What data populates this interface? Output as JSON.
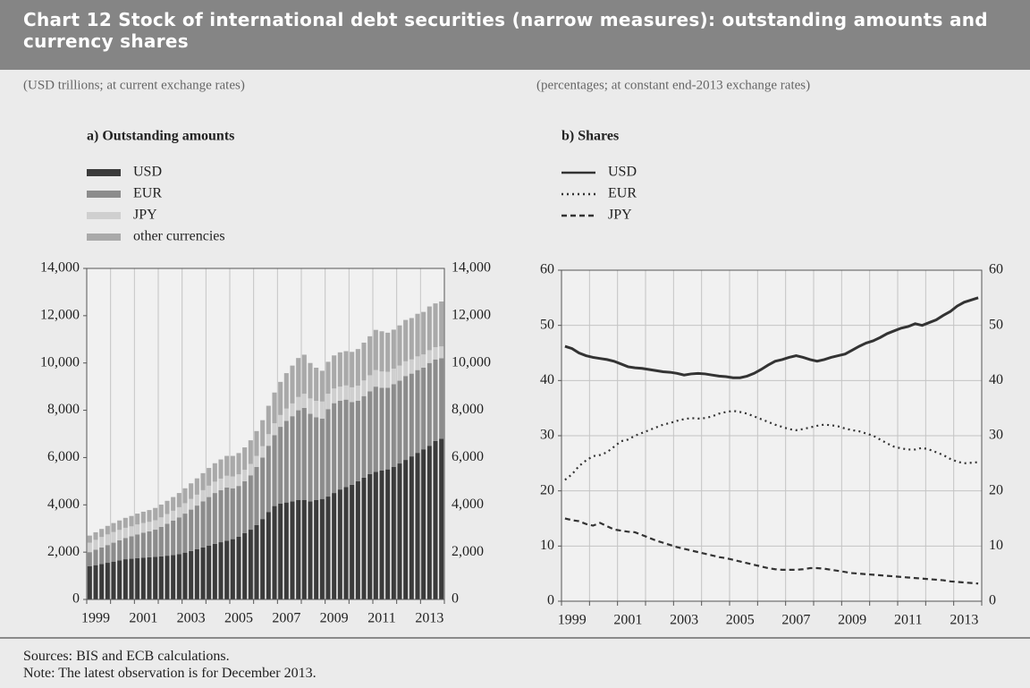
{
  "title": "Chart 12 Stock of international debt securities (narrow measures): outstanding amounts and currency shares",
  "sources": "Sources: BIS and ECB calculations.",
  "note": "Note: The latest observation is for December 2013.",
  "chart_data": [
    {
      "type": "bar",
      "stacked": true,
      "subtitle": "(USD trillions; at current exchange rates)",
      "title": "a) Outstanding amounts",
      "categories": [
        null,
        "1999",
        null,
        null,
        null,
        null,
        null,
        null,
        null,
        "2001",
        null,
        null,
        null,
        null,
        null,
        null,
        null,
        "2003",
        null,
        null,
        null,
        null,
        null,
        null,
        null,
        "2005",
        null,
        null,
        null,
        null,
        null,
        null,
        null,
        "2007",
        null,
        null,
        null,
        null,
        null,
        null,
        null,
        "2009",
        null,
        null,
        null,
        null,
        null,
        null,
        null,
        "2011",
        null,
        null,
        null,
        null,
        null,
        null,
        null,
        "2013",
        null,
        null
      ],
      "series": [
        {
          "name": "USD",
          "color": "#3b3b3b",
          "values": [
            1400,
            1450,
            1500,
            1550,
            1600,
            1650,
            1700,
            1720,
            1750,
            1770,
            1780,
            1800,
            1820,
            1850,
            1880,
            1920,
            1980,
            2050,
            2120,
            2200,
            2280,
            2350,
            2420,
            2480,
            2550,
            2650,
            2800,
            2950,
            3150,
            3400,
            3700,
            3950,
            4050,
            4100,
            4150,
            4200,
            4200,
            4150,
            4200,
            4250,
            4350,
            4500,
            4650,
            4750,
            4850,
            5000,
            5150,
            5300,
            5400,
            5450,
            5500,
            5600,
            5750,
            5900,
            6050,
            6200,
            6350,
            6500,
            6700,
            6800
          ]
        },
        {
          "name": "EUR",
          "color": "#8c8c8c",
          "values": [
            600,
            650,
            700,
            750,
            800,
            850,
            900,
            950,
            1000,
            1050,
            1100,
            1150,
            1250,
            1350,
            1450,
            1550,
            1650,
            1750,
            1850,
            1950,
            2050,
            2150,
            2200,
            2250,
            2150,
            2150,
            2200,
            2300,
            2450,
            2600,
            2800,
            3000,
            3250,
            3450,
            3600,
            3800,
            3900,
            3700,
            3500,
            3400,
            3700,
            3800,
            3750,
            3700,
            3500,
            3400,
            3450,
            3500,
            3600,
            3500,
            3450,
            3500,
            3500,
            3550,
            3500,
            3500,
            3450,
            3500,
            3450,
            3400
          ]
        },
        {
          "name": "JPY",
          "color": "#cfcfcf",
          "values": [
            400,
            420,
            440,
            450,
            450,
            440,
            430,
            420,
            420,
            410,
            400,
            400,
            400,
            410,
            420,
            430,
            440,
            450,
            460,
            470,
            480,
            480,
            490,
            500,
            500,
            490,
            480,
            480,
            470,
            480,
            490,
            500,
            500,
            520,
            540,
            560,
            600,
            650,
            700,
            720,
            650,
            620,
            600,
            600,
            620,
            640,
            660,
            680,
            700,
            690,
            680,
            660,
            640,
            620,
            600,
            580,
            560,
            540,
            520,
            500
          ]
        },
        {
          "name": "other currencies",
          "color": "#a9a9a9",
          "values": [
            300,
            320,
            340,
            360,
            380,
            400,
            420,
            440,
            460,
            480,
            500,
            520,
            540,
            560,
            580,
            600,
            630,
            660,
            690,
            720,
            750,
            780,
            810,
            840,
            870,
            900,
            950,
            1000,
            1050,
            1100,
            1200,
            1300,
            1400,
            1500,
            1600,
            1650,
            1650,
            1500,
            1400,
            1300,
            1350,
            1400,
            1450,
            1450,
            1500,
            1550,
            1600,
            1650,
            1700,
            1700,
            1650,
            1650,
            1700,
            1750,
            1750,
            1800,
            1800,
            1850,
            1850,
            1900
          ]
        }
      ],
      "ylim": [
        0,
        14000
      ],
      "yticks": [
        0,
        {
          "value": 2000,
          "label": "2,000"
        },
        {
          "value": 4000,
          "label": "4,000"
        },
        {
          "value": 6000,
          "label": "6,000"
        },
        {
          "value": 8000,
          "label": "8,000"
        },
        {
          "value": 10000,
          "label": "10,000"
        },
        {
          "value": 12000,
          "label": "12,000"
        },
        {
          "value": 14000,
          "label": "14,000"
        }
      ],
      "grid": "x"
    },
    {
      "type": "line",
      "subtitle": "(percentages; at constant end-2013 exchange rates)",
      "title": "b) Shares",
      "categories": [
        null,
        "1999",
        null,
        null,
        null,
        null,
        null,
        null,
        null,
        "2001",
        null,
        null,
        null,
        null,
        null,
        null,
        null,
        "2003",
        null,
        null,
        null,
        null,
        null,
        null,
        null,
        "2005",
        null,
        null,
        null,
        null,
        null,
        null,
        null,
        "2007",
        null,
        null,
        null,
        null,
        null,
        null,
        null,
        "2009",
        null,
        null,
        null,
        null,
        null,
        null,
        null,
        "2011",
        null,
        null,
        null,
        null,
        null,
        null,
        null,
        "2013",
        null,
        null
      ],
      "series": [
        {
          "name": "USD",
          "color": "#333333",
          "dash": "solid",
          "values": [
            46.2,
            45.8,
            45,
            44.5,
            44.2,
            44,
            43.8,
            43.5,
            43,
            42.5,
            42.3,
            42.2,
            42,
            41.8,
            41.6,
            41.5,
            41.3,
            41,
            41.2,
            41.3,
            41.2,
            41,
            40.8,
            40.7,
            40.5,
            40.5,
            40.8,
            41.3,
            42,
            42.8,
            43.5,
            43.8,
            44.2,
            44.5,
            44.2,
            43.8,
            43.5,
            43.8,
            44.2,
            44.5,
            44.8,
            45.5,
            46.2,
            46.8,
            47.2,
            47.8,
            48.5,
            49,
            49.5,
            49.8,
            50.3,
            50,
            50.5,
            51,
            51.8,
            52.5,
            53.5,
            54.2,
            54.6,
            55
          ]
        },
        {
          "name": "EUR",
          "color": "#333333",
          "dash": "dotted",
          "values": [
            22,
            23,
            24.5,
            25.5,
            26.3,
            26.5,
            27,
            28,
            29,
            29.3,
            30,
            30.5,
            31,
            31.5,
            32,
            32.3,
            32.7,
            33,
            33.2,
            33.1,
            33.2,
            33.5,
            34,
            34.3,
            34.5,
            34.3,
            34,
            33.5,
            33,
            32.5,
            32,
            31.6,
            31.2,
            31,
            31.2,
            31.5,
            31.8,
            32,
            31.9,
            31.7,
            31.3,
            31,
            30.8,
            30.4,
            30,
            29.3,
            28.6,
            28,
            27.7,
            27.5,
            27.5,
            27.8,
            27.5,
            27,
            26.5,
            25.8,
            25.3,
            25,
            25.1,
            25.2
          ]
        },
        {
          "name": "JPY",
          "color": "#333333",
          "dash": "dashed",
          "values": [
            15,
            14.7,
            14.5,
            14,
            13.7,
            14.2,
            13.6,
            13,
            12.8,
            12.6,
            12.5,
            12,
            11.5,
            11,
            10.6,
            10.2,
            9.8,
            9.5,
            9.2,
            8.9,
            8.6,
            8.3,
            8,
            7.8,
            7.5,
            7.2,
            6.9,
            6.6,
            6.3,
            6,
            5.8,
            5.7,
            5.7,
            5.7,
            5.8,
            6,
            6,
            5.9,
            5.7,
            5.5,
            5.3,
            5.1,
            5,
            4.9,
            4.8,
            4.7,
            4.6,
            4.5,
            4.4,
            4.3,
            4.2,
            4.1,
            4,
            3.9,
            3.8,
            3.6,
            3.5,
            3.4,
            3.3,
            3.2
          ]
        }
      ],
      "ylim": [
        0,
        60
      ],
      "yticks": [
        0,
        10,
        20,
        30,
        40,
        50,
        60
      ],
      "grid": "both"
    }
  ]
}
